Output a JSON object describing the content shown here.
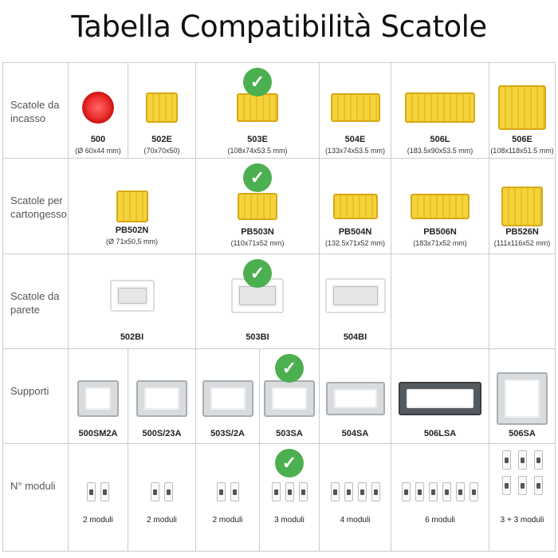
{
  "title": "Tabella Compatibilità Scatole",
  "colors": {
    "check": "#4caf50",
    "box_yellow": "#f5d33a",
    "box_red": "#e33",
    "border": "#cccccc"
  },
  "rows": [
    {
      "label": "Scatole da incasso",
      "cells": [
        {
          "name": "500",
          "dims": "(Ø 60x44 mm)",
          "kind": "red"
        },
        {
          "name": "502E",
          "dims": "(70x70x50)",
          "kind": "yel"
        },
        {
          "name": "503E",
          "dims": "(108x74x53.5 mm)",
          "kind": "yel",
          "check": true
        },
        {
          "name": "504E",
          "dims": "(133x74x53.5 mm)",
          "kind": "yel"
        },
        {
          "name": "506L",
          "dims": "(183.5x90x53.5 mm)",
          "kind": "yel"
        },
        {
          "name": "506E",
          "dims": "(108x118x51.5 mm)",
          "kind": "yel"
        }
      ]
    },
    {
      "label": "Scatole per cartongesso",
      "cells": [
        {
          "name": "PB502N",
          "dims": "(Ø 71x50,5 mm)",
          "kind": "yel"
        },
        {
          "name": "PB503N",
          "dims": "(110x71x52 mm)",
          "kind": "yel",
          "check": true
        },
        {
          "name": "PB504N",
          "dims": "(132.5x71x52 mm)",
          "kind": "yel"
        },
        {
          "name": "PB506N",
          "dims": "(183x71x52 mm)",
          "kind": "yel"
        },
        {
          "name": "PB526N",
          "dims": "(111x116x52 mm)",
          "kind": "yel"
        }
      ]
    },
    {
      "label": "Scatole da parete",
      "cells": [
        {
          "name": "502BI",
          "kind": "wht"
        },
        {
          "name": "503BI",
          "kind": "wht",
          "check": true
        },
        {
          "name": "504BI",
          "kind": "wht"
        },
        {
          "name": "",
          "kind": "none"
        },
        {
          "name": "",
          "kind": "none"
        }
      ]
    },
    {
      "label": "Supporti",
      "cells": [
        {
          "name": "500SM2A",
          "kind": "sup"
        },
        {
          "name": "500S/23A",
          "kind": "sup"
        },
        {
          "name": "503S/2A",
          "kind": "sup"
        },
        {
          "name": "503SA",
          "kind": "sup",
          "check": true
        },
        {
          "name": "504SA",
          "kind": "sup"
        },
        {
          "name": "506LSA",
          "kind": "sup dark"
        },
        {
          "name": "506SA",
          "kind": "sup"
        }
      ]
    },
    {
      "label": "N° moduli",
      "cells": [
        {
          "name": "2 moduli",
          "modules": 2
        },
        {
          "name": "2 moduli",
          "modules": 2
        },
        {
          "name": "2 moduli",
          "modules": 2
        },
        {
          "name": "3 moduli",
          "modules": 3,
          "check": true
        },
        {
          "name": "4 moduli",
          "modules": 4
        },
        {
          "name": "6 moduli",
          "modules": 6
        },
        {
          "name": "3 + 3 moduli",
          "modules": 6
        }
      ]
    }
  ]
}
